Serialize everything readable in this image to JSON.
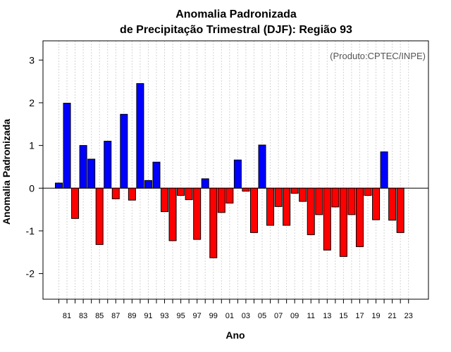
{
  "chart_data": {
    "type": "bar",
    "title_line1": "Anomalia Padronizada",
    "title_line2": "de Precipitação Trimestral (DJF): Região 93",
    "ylabel": "Anomalia Padronizada",
    "xlabel": "Ano",
    "credit": "(Produto:CPTEC/INPE)",
    "ylim": [
      -2.6,
      3.45
    ],
    "yticks": [
      -2,
      -1,
      0,
      1,
      2,
      3
    ],
    "years": [
      1980,
      1981,
      1982,
      1983,
      1984,
      1985,
      1986,
      1987,
      1988,
      1989,
      1990,
      1991,
      1992,
      1993,
      1994,
      1995,
      1996,
      1997,
      1998,
      1999,
      2000,
      2001,
      2002,
      2003,
      2004,
      2005,
      2006,
      2007,
      2008,
      2009,
      2010,
      2011,
      2012,
      2013,
      2014,
      2015,
      2016,
      2017,
      2018,
      2019,
      2020,
      2021,
      2022,
      2023
    ],
    "values": [
      0.12,
      1.99,
      -0.71,
      1.0,
      0.68,
      -1.32,
      1.1,
      -0.25,
      1.73,
      -0.28,
      2.45,
      0.18,
      0.61,
      -0.55,
      -1.23,
      -0.17,
      -0.27,
      -1.2,
      0.22,
      -1.63,
      -0.57,
      -0.35,
      0.66,
      -0.07,
      -1.04,
      1.01,
      -0.87,
      -0.43,
      -0.87,
      -0.12,
      -0.31,
      -1.09,
      -0.62,
      -1.45,
      -0.44,
      -1.6,
      -0.62,
      -1.37,
      -0.17,
      -0.74,
      0.85,
      -0.75,
      -1.04,
      null
    ],
    "xtick_labels": [
      "81",
      "83",
      "85",
      "87",
      "89",
      "91",
      "93",
      "95",
      "97",
      "99",
      "01",
      "03",
      "05",
      "07",
      "09",
      "11",
      "13",
      "15",
      "17",
      "19",
      "21",
      "23"
    ],
    "xtick_years": [
      1981,
      1983,
      1985,
      1987,
      1989,
      1991,
      1993,
      1995,
      1997,
      1999,
      2001,
      2003,
      2005,
      2007,
      2009,
      2011,
      2013,
      2015,
      2017,
      2019,
      2021,
      2023
    ],
    "positive_color": "#0000ff",
    "negative_color": "#ff0000",
    "grid": true
  }
}
